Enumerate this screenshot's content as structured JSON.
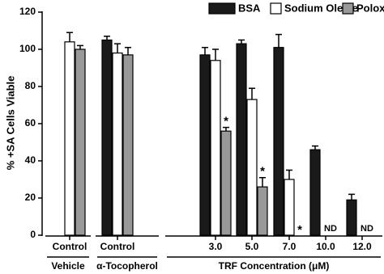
{
  "chart_data": {
    "type": "bar",
    "ylabel": "% +SA Cells Viable",
    "categories": [
      "Control",
      "Control",
      "3.0",
      "5.0",
      "7.0",
      "10.0",
      "12.0"
    ],
    "groups": [
      {
        "label": "Vehicle"
      },
      {
        "label": "α-Tocopherol"
      },
      {
        "label": "TRF Concentration (μM)"
      }
    ],
    "series": [
      {
        "name": "BSA",
        "color": "#1a1a1a",
        "values": [
          null,
          105,
          97,
          103,
          101,
          46,
          19
        ],
        "errors": [
          null,
          2,
          4,
          2,
          7,
          2,
          3
        ],
        "notes": [
          null,
          null,
          null,
          null,
          null,
          null,
          null
        ]
      },
      {
        "name": "Sodium Oleate",
        "color": "#ffffff",
        "values": [
          104,
          98,
          94,
          73,
          30,
          null,
          null
        ],
        "errors": [
          5,
          5,
          6,
          6,
          5,
          null,
          null
        ],
        "notes": [
          null,
          null,
          null,
          null,
          null,
          null,
          null
        ]
      },
      {
        "name": "Poloxamer",
        "color": "#999999",
        "values": [
          100,
          97,
          56,
          26,
          null,
          null,
          null
        ],
        "errors": [
          2,
          4,
          2,
          5,
          null,
          null,
          null
        ],
        "notes": [
          null,
          null,
          "*",
          "*",
          "*",
          "ND",
          "ND"
        ]
      }
    ],
    "ylim": [
      0,
      120
    ],
    "yticks": [
      0,
      20,
      40,
      60,
      80,
      100,
      120
    ]
  }
}
